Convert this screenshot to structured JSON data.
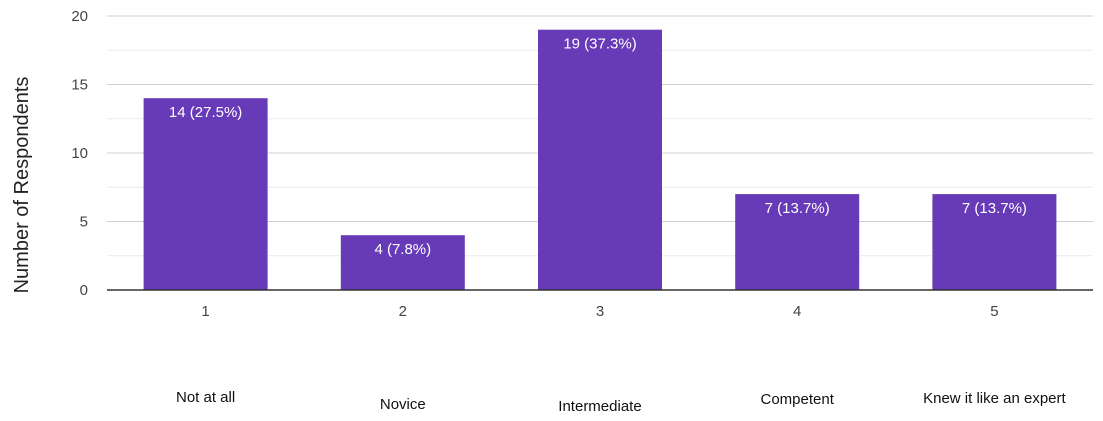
{
  "chart_data": {
    "type": "bar",
    "categories": [
      "1",
      "2",
      "3",
      "4",
      "5"
    ],
    "values": [
      14,
      4,
      19,
      7,
      7
    ],
    "data_labels": [
      "14 (27.5%)",
      "4 (7.8%)",
      "19 (37.3%)",
      "7 (13.7%)",
      "7 (13.7%)"
    ],
    "category_descriptions": [
      "Not at all",
      "Novice",
      "Intermediate",
      "Competent",
      "Knew it like an expert"
    ],
    "ylabel": "Number of Respondents",
    "ylim": [
      0,
      20
    ],
    "yticks": [
      0,
      5,
      10,
      15,
      20
    ],
    "grid": true,
    "bar_color": "#673ab7"
  }
}
